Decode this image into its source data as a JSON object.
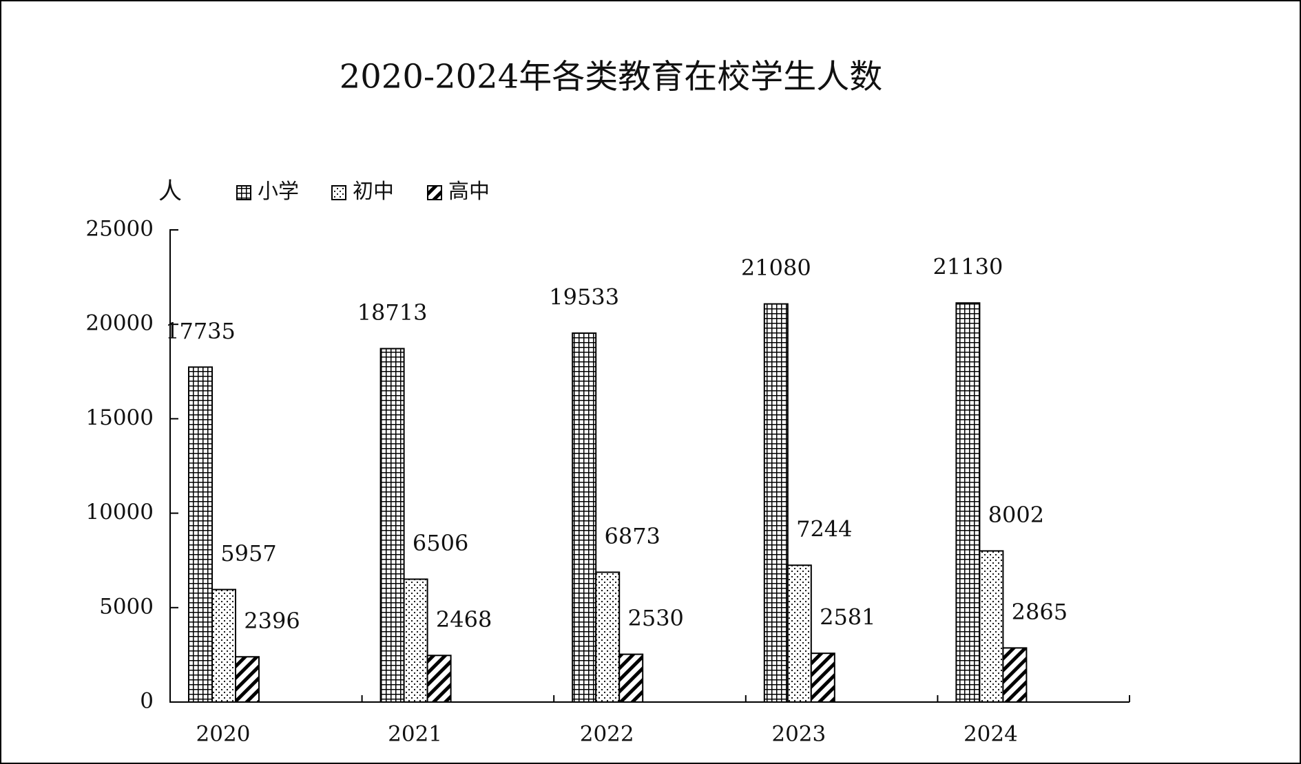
{
  "chart_data": {
    "type": "bar",
    "title": "2020-2024年各类教育在校学生人数",
    "y_label": "人",
    "categories": [
      "2020",
      "2021",
      "2022",
      "2023",
      "2024"
    ],
    "series": [
      {
        "name": "小学",
        "color": "#000000",
        "pattern": "grid",
        "values": [
          17735,
          18713,
          19533,
          21080,
          21130
        ]
      },
      {
        "name": "初中",
        "color": "#000000",
        "pattern": "dots",
        "values": [
          5957,
          6506,
          6873,
          7244,
          8002
        ]
      },
      {
        "name": "高中",
        "color": "#000000",
        "pattern": "hatch",
        "values": [
          2396,
          2468,
          2530,
          2581,
          2865
        ]
      }
    ],
    "ylim": [
      0,
      25000
    ],
    "yticks": [
      0,
      5000,
      10000,
      15000,
      20000,
      25000
    ],
    "grid": false
  }
}
